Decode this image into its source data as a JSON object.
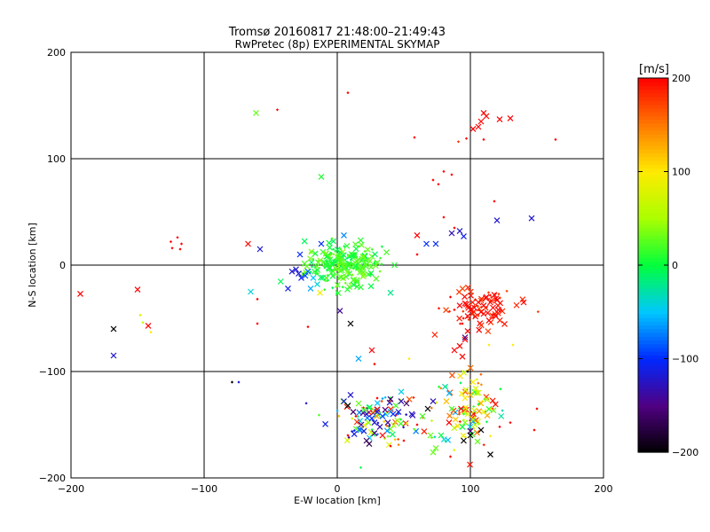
{
  "chart_data": {
    "type": "scatter",
    "title": "Tromsø 20160817 21:48:00–21:49:43",
    "subtitle": "RwPretec (8p) EXPERIMENTAL SKYMAP",
    "xlabel": "E-W location [km]",
    "ylabel": "N-S location [km]",
    "xlim": [
      -200,
      200
    ],
    "ylim": [
      -200,
      200
    ],
    "x_ticks": [
      -200,
      -100,
      0,
      100,
      200
    ],
    "y_ticks": [
      -200,
      -100,
      0,
      100,
      200
    ],
    "grid": true,
    "colorbar": {
      "label": "[m/s]",
      "range": [
        -200,
        200
      ],
      "ticks": [
        -200,
        -100,
        0,
        100,
        200
      ]
    },
    "points": [
      {
        "x": -61,
        "y": 143,
        "v": 30,
        "m": "x"
      },
      {
        "x": -45,
        "y": 146,
        "v": 200,
        "m": "d"
      },
      {
        "x": 8,
        "y": 162,
        "v": 200,
        "m": "d"
      },
      {
        "x": 58,
        "y": 120,
        "v": 200,
        "m": "d"
      },
      {
        "x": 91,
        "y": 116,
        "v": 180,
        "m": "d"
      },
      {
        "x": 97,
        "y": 119,
        "v": 200,
        "m": "d"
      },
      {
        "x": 102,
        "y": 128,
        "v": 200,
        "m": "x"
      },
      {
        "x": 106,
        "y": 130,
        "v": 200,
        "m": "x"
      },
      {
        "x": 108,
        "y": 135,
        "v": 200,
        "m": "x"
      },
      {
        "x": 112,
        "y": 140,
        "v": 200,
        "m": "x"
      },
      {
        "x": 110,
        "y": 143,
        "v": 200,
        "m": "x"
      },
      {
        "x": 122,
        "y": 137,
        "v": 200,
        "m": "x"
      },
      {
        "x": 130,
        "y": 138,
        "v": 200,
        "m": "x"
      },
      {
        "x": 110,
        "y": 118,
        "v": 200,
        "m": "d"
      },
      {
        "x": 164,
        "y": 118,
        "v": 200,
        "m": "d"
      },
      {
        "x": 72,
        "y": 80,
        "v": 200,
        "m": "d"
      },
      {
        "x": 76,
        "y": 76,
        "v": 200,
        "m": "d"
      },
      {
        "x": 80,
        "y": 88,
        "v": 200,
        "m": "d"
      },
      {
        "x": 86,
        "y": 85,
        "v": 200,
        "m": "d"
      },
      {
        "x": 118,
        "y": 60,
        "v": 200,
        "m": "d"
      },
      {
        "x": -12,
        "y": 83,
        "v": 10,
        "m": "x"
      },
      {
        "x": 120,
        "y": 42,
        "v": -120,
        "m": "x"
      },
      {
        "x": 146,
        "y": 44,
        "v": -120,
        "m": "x"
      },
      {
        "x": 80,
        "y": 45,
        "v": 200,
        "m": "d"
      },
      {
        "x": 88,
        "y": 35,
        "v": 200,
        "m": "d"
      },
      {
        "x": 86,
        "y": 30,
        "v": -130,
        "m": "x"
      },
      {
        "x": 92,
        "y": 32,
        "v": -120,
        "m": "x"
      },
      {
        "x": 95,
        "y": 27,
        "v": -110,
        "m": "x"
      },
      {
        "x": 60,
        "y": 28,
        "v": 200,
        "m": "x"
      },
      {
        "x": 67,
        "y": 20,
        "v": -100,
        "m": "x"
      },
      {
        "x": 74,
        "y": 20,
        "v": -100,
        "m": "x"
      },
      {
        "x": 60,
        "y": 10,
        "v": 200,
        "m": "d"
      },
      {
        "x": -125,
        "y": 22,
        "v": 200,
        "m": "d"
      },
      {
        "x": -120,
        "y": 26,
        "v": 200,
        "m": "d"
      },
      {
        "x": -117,
        "y": 20,
        "v": 200,
        "m": "d"
      },
      {
        "x": -124,
        "y": 16,
        "v": 200,
        "m": "d"
      },
      {
        "x": -118,
        "y": 15,
        "v": 200,
        "m": "d"
      },
      {
        "x": -67,
        "y": 20,
        "v": 200,
        "m": "x"
      },
      {
        "x": -58,
        "y": 15,
        "v": -120,
        "m": "x"
      },
      {
        "x": -12,
        "y": 20,
        "v": -100,
        "m": "x"
      },
      {
        "x": 5,
        "y": 28,
        "v": -70,
        "m": "x"
      },
      {
        "x": -28,
        "y": 10,
        "v": -100,
        "m": "x"
      },
      {
        "x": -31,
        "y": -4,
        "v": -120,
        "m": "x"
      },
      {
        "x": -34,
        "y": -6,
        "v": -120,
        "m": "x"
      },
      {
        "x": -29,
        "y": -8,
        "v": -120,
        "m": "x"
      },
      {
        "x": -27,
        "y": -12,
        "v": -110,
        "m": "x"
      },
      {
        "x": -24,
        "y": -10,
        "v": -90,
        "m": "x"
      },
      {
        "x": -22,
        "y": -6,
        "v": -80,
        "m": "x"
      },
      {
        "x": -18,
        "y": -12,
        "v": -50,
        "m": "x"
      },
      {
        "x": -15,
        "y": -18,
        "v": -40,
        "m": "x"
      },
      {
        "x": -20,
        "y": -22,
        "v": -60,
        "m": "x"
      },
      {
        "x": -37,
        "y": -22,
        "v": -110,
        "m": "x"
      },
      {
        "x": -65,
        "y": -25,
        "v": -40,
        "m": "x"
      },
      {
        "x": -13,
        "y": -26,
        "v": 90,
        "m": "x"
      },
      {
        "x": 40,
        "y": -26,
        "v": -20,
        "m": "x"
      },
      {
        "x": 43,
        "y": 0,
        "v": 10,
        "m": "x"
      },
      {
        "x": 37,
        "y": 12,
        "v": 20,
        "m": "x"
      },
      {
        "x": 15,
        "y": -16,
        "v": 20,
        "m": "x"
      },
      {
        "x": -60,
        "y": -32,
        "v": 200,
        "m": "d"
      },
      {
        "x": -60,
        "y": -55,
        "v": 200,
        "m": "d"
      },
      {
        "x": -22,
        "y": -58,
        "v": 200,
        "m": "d"
      },
      {
        "x": 2,
        "y": -43,
        "v": -140,
        "m": "x"
      },
      {
        "x": 10,
        "y": -55,
        "v": -200,
        "m": "x"
      },
      {
        "x": 26,
        "y": -80,
        "v": 200,
        "m": "x"
      },
      {
        "x": 16,
        "y": -88,
        "v": -60,
        "m": "x"
      },
      {
        "x": 28,
        "y": -93,
        "v": 200,
        "m": "d"
      },
      {
        "x": 54,
        "y": -88,
        "v": 100,
        "m": "d"
      },
      {
        "x": -193,
        "y": -27,
        "v": 200,
        "m": "x"
      },
      {
        "x": -150,
        "y": -23,
        "v": 200,
        "m": "x"
      },
      {
        "x": -148,
        "y": -47,
        "v": 80,
        "m": "d"
      },
      {
        "x": -146,
        "y": -54,
        "v": 60,
        "m": "d"
      },
      {
        "x": -142,
        "y": -57,
        "v": 200,
        "m": "x"
      },
      {
        "x": -140,
        "y": -63,
        "v": 100,
        "m": "d"
      },
      {
        "x": -168,
        "y": -60,
        "v": -200,
        "m": "x"
      },
      {
        "x": -168,
        "y": -85,
        "v": -120,
        "m": "x"
      },
      {
        "x": -79,
        "y": -110,
        "v": -200,
        "m": "d"
      },
      {
        "x": -74,
        "y": -110,
        "v": -120,
        "m": "d"
      },
      {
        "x": 92,
        "y": -38,
        "v": 200,
        "m": "x"
      },
      {
        "x": 96,
        "y": -36,
        "v": 200,
        "m": "x"
      },
      {
        "x": 100,
        "y": -42,
        "v": 200,
        "m": "x"
      },
      {
        "x": 103,
        "y": -40,
        "v": 200,
        "m": "x"
      },
      {
        "x": 106,
        "y": -35,
        "v": 200,
        "m": "x"
      },
      {
        "x": 108,
        "y": -44,
        "v": 200,
        "m": "x"
      },
      {
        "x": 110,
        "y": -38,
        "v": 200,
        "m": "x"
      },
      {
        "x": 112,
        "y": -30,
        "v": 200,
        "m": "x"
      },
      {
        "x": 113,
        "y": -45,
        "v": 200,
        "m": "x"
      },
      {
        "x": 115,
        "y": -35,
        "v": 200,
        "m": "x"
      },
      {
        "x": 117,
        "y": -40,
        "v": 200,
        "m": "x"
      },
      {
        "x": 118,
        "y": -28,
        "v": 200,
        "m": "x"
      },
      {
        "x": 119,
        "y": -48,
        "v": 200,
        "m": "x"
      },
      {
        "x": 120,
        "y": -33,
        "v": 200,
        "m": "x"
      },
      {
        "x": 121,
        "y": -42,
        "v": 200,
        "m": "x"
      },
      {
        "x": 114,
        "y": -52,
        "v": 200,
        "m": "x"
      },
      {
        "x": 98,
        "y": -48,
        "v": 200,
        "m": "x"
      },
      {
        "x": 140,
        "y": -35,
        "v": 200,
        "m": "x"
      },
      {
        "x": 88,
        "y": -42,
        "v": 200,
        "m": "d"
      },
      {
        "x": 85,
        "y": -30,
        "v": 200,
        "m": "d"
      },
      {
        "x": 94,
        "y": -55,
        "v": 200,
        "m": "d"
      },
      {
        "x": 98,
        "y": -62,
        "v": 200,
        "m": "x"
      },
      {
        "x": 96,
        "y": -70,
        "v": 200,
        "m": "x"
      },
      {
        "x": 92,
        "y": -76,
        "v": 200,
        "m": "x"
      },
      {
        "x": 88,
        "y": -80,
        "v": 200,
        "m": "x"
      },
      {
        "x": 94,
        "y": -86,
        "v": 200,
        "m": "x"
      },
      {
        "x": 96,
        "y": -68,
        "v": -150,
        "m": "x"
      },
      {
        "x": 98,
        "y": -100,
        "v": -200,
        "m": "d"
      },
      {
        "x": 114,
        "y": -75,
        "v": 100,
        "m": "d"
      },
      {
        "x": 132,
        "y": -75,
        "v": 100,
        "m": "d"
      },
      {
        "x": 102,
        "y": -110,
        "v": 100,
        "m": "x"
      },
      {
        "x": 104,
        "y": -116,
        "v": 80,
        "m": "x"
      },
      {
        "x": 100,
        "y": -122,
        "v": 120,
        "m": "x"
      },
      {
        "x": 106,
        "y": -120,
        "v": 60,
        "m": "x"
      },
      {
        "x": 96,
        "y": -125,
        "v": 100,
        "m": "x"
      },
      {
        "x": 108,
        "y": -130,
        "v": 120,
        "m": "x"
      },
      {
        "x": 93,
        "y": -135,
        "v": 200,
        "m": "x"
      },
      {
        "x": 98,
        "y": -140,
        "v": 80,
        "m": "x"
      },
      {
        "x": 110,
        "y": -138,
        "v": 90,
        "m": "x"
      },
      {
        "x": 102,
        "y": -145,
        "v": 60,
        "m": "x"
      },
      {
        "x": 96,
        "y": -148,
        "v": 40,
        "m": "x"
      },
      {
        "x": 94,
        "y": -152,
        "v": 0,
        "m": "x"
      },
      {
        "x": 100,
        "y": -156,
        "v": -150,
        "m": "x"
      },
      {
        "x": 108,
        "y": -155,
        "v": -200,
        "m": "x"
      },
      {
        "x": 100,
        "y": -160,
        "v": -200,
        "m": "x"
      },
      {
        "x": 95,
        "y": -165,
        "v": -200,
        "m": "x"
      },
      {
        "x": 115,
        "y": -178,
        "v": -200,
        "m": "x"
      },
      {
        "x": 82,
        "y": -128,
        "v": 120,
        "m": "x"
      },
      {
        "x": 86,
        "y": -135,
        "v": 20,
        "m": "x"
      },
      {
        "x": 84,
        "y": -148,
        "v": 200,
        "m": "x"
      },
      {
        "x": 78,
        "y": -160,
        "v": 0,
        "m": "x"
      },
      {
        "x": 74,
        "y": -172,
        "v": 30,
        "m": "x"
      },
      {
        "x": 122,
        "y": -152,
        "v": 200,
        "m": "d"
      },
      {
        "x": 130,
        "y": -148,
        "v": 200,
        "m": "d"
      },
      {
        "x": 150,
        "y": -135,
        "v": 200,
        "m": "d"
      },
      {
        "x": 148,
        "y": -155,
        "v": 200,
        "m": "d"
      },
      {
        "x": 68,
        "y": -135,
        "v": -200,
        "m": "x"
      },
      {
        "x": 72,
        "y": -128,
        "v": -130,
        "m": "x"
      },
      {
        "x": 64,
        "y": -142,
        "v": 20,
        "m": "x"
      },
      {
        "x": 70,
        "y": -160,
        "v": 30,
        "m": "x"
      },
      {
        "x": 72,
        "y": -176,
        "v": 30,
        "m": "x"
      },
      {
        "x": 5,
        "y": -128,
        "v": -120,
        "m": "x"
      },
      {
        "x": 8,
        "y": -132,
        "v": -200,
        "m": "x"
      },
      {
        "x": 12,
        "y": -138,
        "v": -160,
        "m": "x"
      },
      {
        "x": 16,
        "y": -130,
        "v": 30,
        "m": "x"
      },
      {
        "x": 20,
        "y": -136,
        "v": 20,
        "m": "x"
      },
      {
        "x": 22,
        "y": -140,
        "v": -120,
        "m": "x"
      },
      {
        "x": 24,
        "y": -134,
        "v": 0,
        "m": "x"
      },
      {
        "x": 26,
        "y": -144,
        "v": -100,
        "m": "x"
      },
      {
        "x": 28,
        "y": -148,
        "v": -120,
        "m": "x"
      },
      {
        "x": 30,
        "y": -138,
        "v": -110,
        "m": "x"
      },
      {
        "x": 32,
        "y": -152,
        "v": -130,
        "m": "x"
      },
      {
        "x": 34,
        "y": -142,
        "v": -90,
        "m": "x"
      },
      {
        "x": 36,
        "y": -136,
        "v": -150,
        "m": "x"
      },
      {
        "x": 38,
        "y": -148,
        "v": -140,
        "m": "x"
      },
      {
        "x": 40,
        "y": -126,
        "v": -160,
        "m": "x"
      },
      {
        "x": 42,
        "y": -140,
        "v": -100,
        "m": "x"
      },
      {
        "x": 44,
        "y": -132,
        "v": 20,
        "m": "x"
      },
      {
        "x": 46,
        "y": -138,
        "v": -120,
        "m": "x"
      },
      {
        "x": 48,
        "y": -128,
        "v": -130,
        "m": "x"
      },
      {
        "x": 52,
        "y": -130,
        "v": -160,
        "m": "x"
      },
      {
        "x": 56,
        "y": -140,
        "v": -120,
        "m": "x"
      },
      {
        "x": 18,
        "y": -150,
        "v": -140,
        "m": "x"
      },
      {
        "x": 20,
        "y": -156,
        "v": -110,
        "m": "x"
      },
      {
        "x": 22,
        "y": -165,
        "v": -160,
        "m": "x"
      },
      {
        "x": 24,
        "y": -168,
        "v": -170,
        "m": "x"
      },
      {
        "x": 28,
        "y": -158,
        "v": -150,
        "m": "x"
      },
      {
        "x": 34,
        "y": -160,
        "v": 200,
        "m": "x"
      },
      {
        "x": 10,
        "y": -122,
        "v": -120,
        "m": "x"
      },
      {
        "x": 30,
        "y": -125,
        "v": 200,
        "m": "d"
      },
      {
        "x": 14,
        "y": -142,
        "v": 200,
        "m": "d"
      },
      {
        "x": 60,
        "y": -150,
        "v": 200,
        "m": "d"
      },
      {
        "x": 40,
        "y": -170,
        "v": 200,
        "m": "d"
      },
      {
        "x": 50,
        "y": -165,
        "v": 200,
        "m": "d"
      },
      {
        "x": 8,
        "y": -160,
        "v": 200,
        "m": "d"
      },
      {
        "x": 85,
        "y": -180,
        "v": 200,
        "m": "d"
      }
    ]
  },
  "cluster_spec": {
    "near_origin": {
      "cx": 5,
      "cy": 0,
      "sx": 14,
      "sy": 10,
      "n": 230,
      "v": [
        -10,
        40
      ]
    },
    "east_red": {
      "cx": 105,
      "cy": -40,
      "sx": 14,
      "sy": 10,
      "n": 70,
      "v": [
        170,
        200
      ]
    },
    "south_west_mix": {
      "cx": 28,
      "cy": -142,
      "sx": 18,
      "sy": 12,
      "n": 90,
      "v": [
        -150,
        200
      ]
    },
    "south_east_mix": {
      "cx": 100,
      "cy": -135,
      "sx": 14,
      "sy": 18,
      "n": 90,
      "v": [
        -60,
        200
      ]
    }
  }
}
